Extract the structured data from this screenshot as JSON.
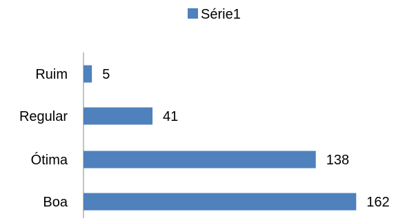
{
  "chart_data": {
    "type": "bar",
    "orientation": "horizontal",
    "categories": [
      "Ruim",
      "Regular",
      "Ótima",
      "Boa"
    ],
    "series": [
      {
        "name": "Série1",
        "values": [
          5,
          41,
          138,
          162
        ],
        "color": "#4F81BD"
      }
    ],
    "xlim": [
      0,
      165
    ],
    "grid": false,
    "legend": "top-center",
    "data_labels": true
  }
}
